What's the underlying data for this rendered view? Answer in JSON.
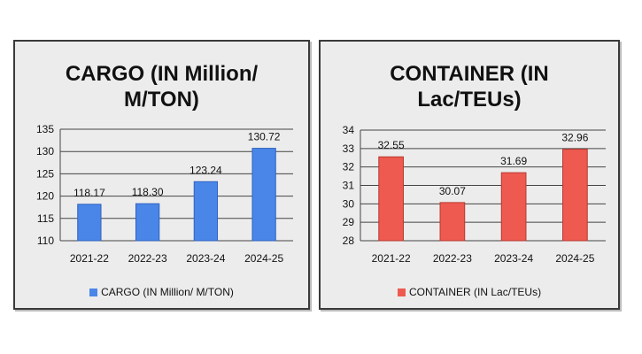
{
  "colors": {
    "cargo_bar": "#4a86e8",
    "cargo_bar_edge": "#2f62c0",
    "container_bar": "#ee5a4f",
    "container_bar_edge": "#b7382f",
    "gridline": "#444444"
  },
  "chart_data": [
    {
      "type": "bar",
      "title": "CARGO (IN Million/\nM/TON)",
      "categories": [
        "2021-22",
        "2022-23",
        "2023-24",
        "2024-25"
      ],
      "series": [
        {
          "name": "CARGO (IN Million/ M/TON)",
          "values": [
            118.17,
            118.3,
            123.24,
            130.72
          ]
        }
      ],
      "data_labels": [
        "118.17",
        "118.30",
        "123.24",
        "130.72"
      ],
      "y_ticks": [
        "110",
        "115",
        "120",
        "125",
        "130",
        "135"
      ],
      "ylim": [
        110,
        135
      ],
      "grid": true,
      "legend": "bottom"
    },
    {
      "type": "bar",
      "title": "CONTAINER (IN\nLac/TEUs)",
      "categories": [
        "2021-22",
        "2022-23",
        "2023-24",
        "2024-25"
      ],
      "series": [
        {
          "name": "CONTAINER (IN Lac/TEUs)",
          "values": [
            32.55,
            30.07,
            31.69,
            32.96
          ]
        }
      ],
      "data_labels": [
        "32.55",
        "30.07",
        "31.69",
        "32.96"
      ],
      "y_ticks": [
        "28",
        "29",
        "30",
        "31",
        "32",
        "33",
        "34"
      ],
      "ylim": [
        28,
        34
      ],
      "grid": true,
      "legend": "bottom"
    }
  ]
}
